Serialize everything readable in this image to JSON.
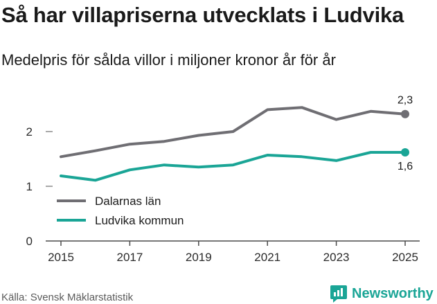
{
  "title": "Så har villapriserna utvecklats i Ludvika",
  "subtitle": "Medelpris för sålda villor i miljoner kronor år för år",
  "source": "Källa: Svensk Mäklarstatistik",
  "brand": {
    "name": "Newsworthy",
    "logo_icon": "newsworthy-chart-logo-icon",
    "color": "#1aa596"
  },
  "chart_data": {
    "type": "line",
    "title": "Så har villapriserna utvecklats i Ludvika",
    "subtitle": "Medelpris för sålda villor i miljoner kronor år för år",
    "xlabel": "",
    "ylabel": "",
    "x": [
      2015,
      2016,
      2017,
      2018,
      2019,
      2020,
      2021,
      2022,
      2023,
      2024,
      2025
    ],
    "xlim": [
      2015,
      2025
    ],
    "ylim": [
      0,
      2.55
    ],
    "x_ticks": [
      2015,
      2017,
      2019,
      2021,
      2023,
      2025
    ],
    "x_tick_labels": [
      "2015",
      "2017",
      "2019",
      "2021",
      "2023",
      "2025"
    ],
    "y_ticks": [
      0,
      1,
      2
    ],
    "y_tick_labels": [
      "0",
      "1",
      "2"
    ],
    "grid": false,
    "legend_position": "lower-left",
    "series": [
      {
        "name": "Dalarnas län",
        "color": "#6f6e73",
        "values": [
          1.54,
          1.65,
          1.77,
          1.82,
          1.93,
          2.0,
          2.4,
          2.44,
          2.22,
          2.37,
          2.32
        ],
        "end_label": "2,3",
        "end_label_position": "above"
      },
      {
        "name": "Ludvika kommun",
        "color": "#1aa596",
        "values": [
          1.19,
          1.11,
          1.3,
          1.39,
          1.35,
          1.39,
          1.57,
          1.54,
          1.47,
          1.62,
          1.62
        ],
        "end_label": "1,6",
        "end_label_position": "below"
      }
    ]
  }
}
